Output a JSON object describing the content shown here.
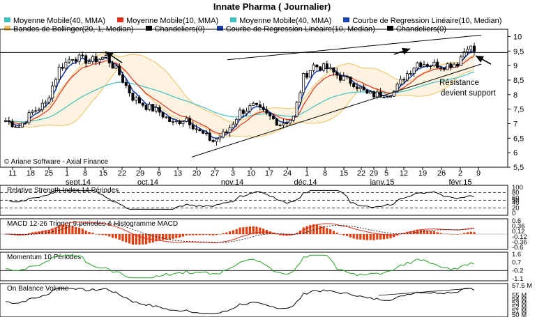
{
  "title": "Innate Pharma  ( Journalier)",
  "legend_rows": [
    [
      {
        "label": "Moyenne Mobile(40, MMA)",
        "color": "#40c0c0"
      },
      {
        "label": "Moyenne Mobile(10, MMA)",
        "color": "#e03020"
      },
      {
        "label": "Moyenne Mobile(40, MMA)",
        "color": "#40c0c0"
      },
      {
        "label": "Courbe de Regression Linéaire(10, Median)",
        "color": "#1a40b0"
      }
    ],
    [
      {
        "label": "Bandes de Bollinger(20, 1, Median)",
        "color": "#f0c060"
      },
      {
        "label": "Chandeliers(0)",
        "color": "#000000"
      },
      {
        "label": "Courbe de Regression Linéaire(10, Median)",
        "color": "#1a40b0"
      },
      {
        "label": "Chandeliers(0)",
        "color": "#000000"
      }
    ]
  ],
  "footer": "© Ariane Software - Axial Finance",
  "annotation": [
    "Résistance",
    "devient support"
  ],
  "chart_data": {
    "type": "candlestick",
    "ylim": [
      5.5,
      10.25
    ],
    "yticks": [
      5.5,
      6,
      6.5,
      7,
      7.5,
      8,
      8.5,
      9,
      9.5,
      10
    ],
    "ytick_labels": [
      "5,5",
      "6",
      "6,5",
      "7",
      "7,5",
      "8",
      "8,5",
      "9",
      "9,5",
      "10"
    ],
    "x_day_labels": [
      "11",
      "18",
      "25",
      "1",
      "8",
      "15",
      "22",
      "29",
      "6",
      "13",
      "20",
      "27",
      "3",
      "10",
      "17",
      "24",
      "1",
      "8",
      "15",
      "22",
      "29",
      "5",
      "12",
      "19",
      "26",
      "2",
      "9"
    ],
    "x_month_labels": [
      "sept.14",
      "oct.14",
      "nov.14",
      "déc.14",
      "janv.15",
      "févr.15"
    ],
    "price_anchor_points": [
      [
        0,
        7.1
      ],
      [
        4,
        6.9
      ],
      [
        8,
        7.4
      ],
      [
        12,
        7.7
      ],
      [
        16,
        8.9
      ],
      [
        20,
        9.3
      ],
      [
        25,
        9.15
      ],
      [
        30,
        9.3
      ],
      [
        34,
        8.7
      ],
      [
        38,
        7.9
      ],
      [
        42,
        7.6
      ],
      [
        46,
        7.4
      ],
      [
        50,
        7.0
      ],
      [
        54,
        7.2
      ],
      [
        58,
        6.7
      ],
      [
        62,
        6.4
      ],
      [
        66,
        6.7
      ],
      [
        70,
        7.4
      ],
      [
        74,
        7.6
      ],
      [
        78,
        7.3
      ],
      [
        82,
        7.0
      ],
      [
        86,
        7.2
      ],
      [
        89,
        8.6
      ],
      [
        92,
        9.0
      ],
      [
        96,
        8.9
      ],
      [
        100,
        8.6
      ],
      [
        104,
        8.4
      ],
      [
        108,
        8.0
      ],
      [
        112,
        8.0
      ],
      [
        116,
        8.1
      ],
      [
        119,
        8.6
      ],
      [
        123,
        9.1
      ],
      [
        127,
        9.05
      ],
      [
        131,
        9.0
      ],
      [
        135,
        9.1
      ],
      [
        138,
        9.7
      ],
      [
        140,
        9.5
      ]
    ],
    "series": [
      {
        "name": "Moyenne Mobile(40, MMA)",
        "color": "#40c0c0"
      },
      {
        "name": "Moyenne Mobile(10, MMA)",
        "color": "#e03020"
      },
      {
        "name": "Courbe de Regression Linéaire(10, Median)",
        "color": "#1a40b0"
      },
      {
        "name": "Bandes de Bollinger(20, 1, Median)",
        "color": "#f0c060"
      },
      {
        "name": "Chandeliers(0)",
        "color": "#000000"
      }
    ],
    "panels": [
      {
        "title": "Relative Strength Index 14 Périodes",
        "ylim": [
          0,
          100
        ],
        "ticks": [
          "100",
          "80",
          "60",
          "50",
          "40",
          "20",
          "0"
        ],
        "tick_values": [
          100,
          80,
          60,
          50,
          40,
          20,
          0
        ],
        "levels": [
          80,
          50,
          20
        ]
      },
      {
        "title": "MACD 12-26   Trigger 9 periodes & Histogramme MACD",
        "ylim": [
          -0.6,
          0.6
        ],
        "ticks": [
          "0.6",
          "0.36",
          "0.12",
          "-0.12",
          "-0.36",
          "-0.6"
        ],
        "tick_values": [
          0.6,
          0.36,
          0.12,
          -0.12,
          -0.36,
          -0.6
        ]
      },
      {
        "title": "Momentum 10 Périodes",
        "ylim": [
          -1.1,
          1.6
        ],
        "ticks": [
          "1.6",
          "0.7",
          "-0.2",
          "-1.1"
        ],
        "tick_values": [
          1.6,
          0.7,
          -0.2,
          -1.1
        ]
      },
      {
        "title": "On Balance Volume",
        "ylim": [
          50,
          57.5
        ],
        "ticks": [
          "57.5 M",
          "55 M",
          "54 M",
          "53 M",
          "52 M",
          "51 M",
          "50 M"
        ],
        "tick_values": [
          57.5,
          55,
          54,
          53,
          52,
          51,
          50
        ]
      }
    ]
  }
}
